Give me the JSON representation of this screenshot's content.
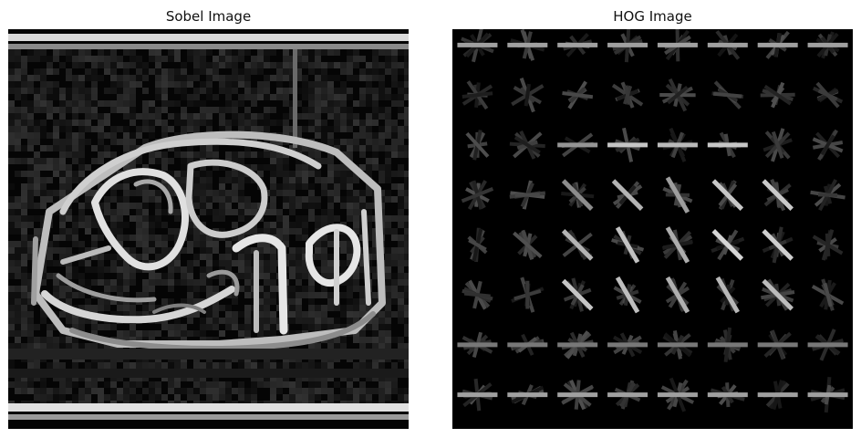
{
  "panels": [
    {
      "title": "Sobel Image"
    },
    {
      "title": "HOG Image"
    }
  ],
  "colors": {
    "background": "#ffffff",
    "image_background": "#000000",
    "edge_strong": "#e6e6e6",
    "edge_mid": "#9a9a9a",
    "edge_faint": "#3a3a3a"
  }
}
